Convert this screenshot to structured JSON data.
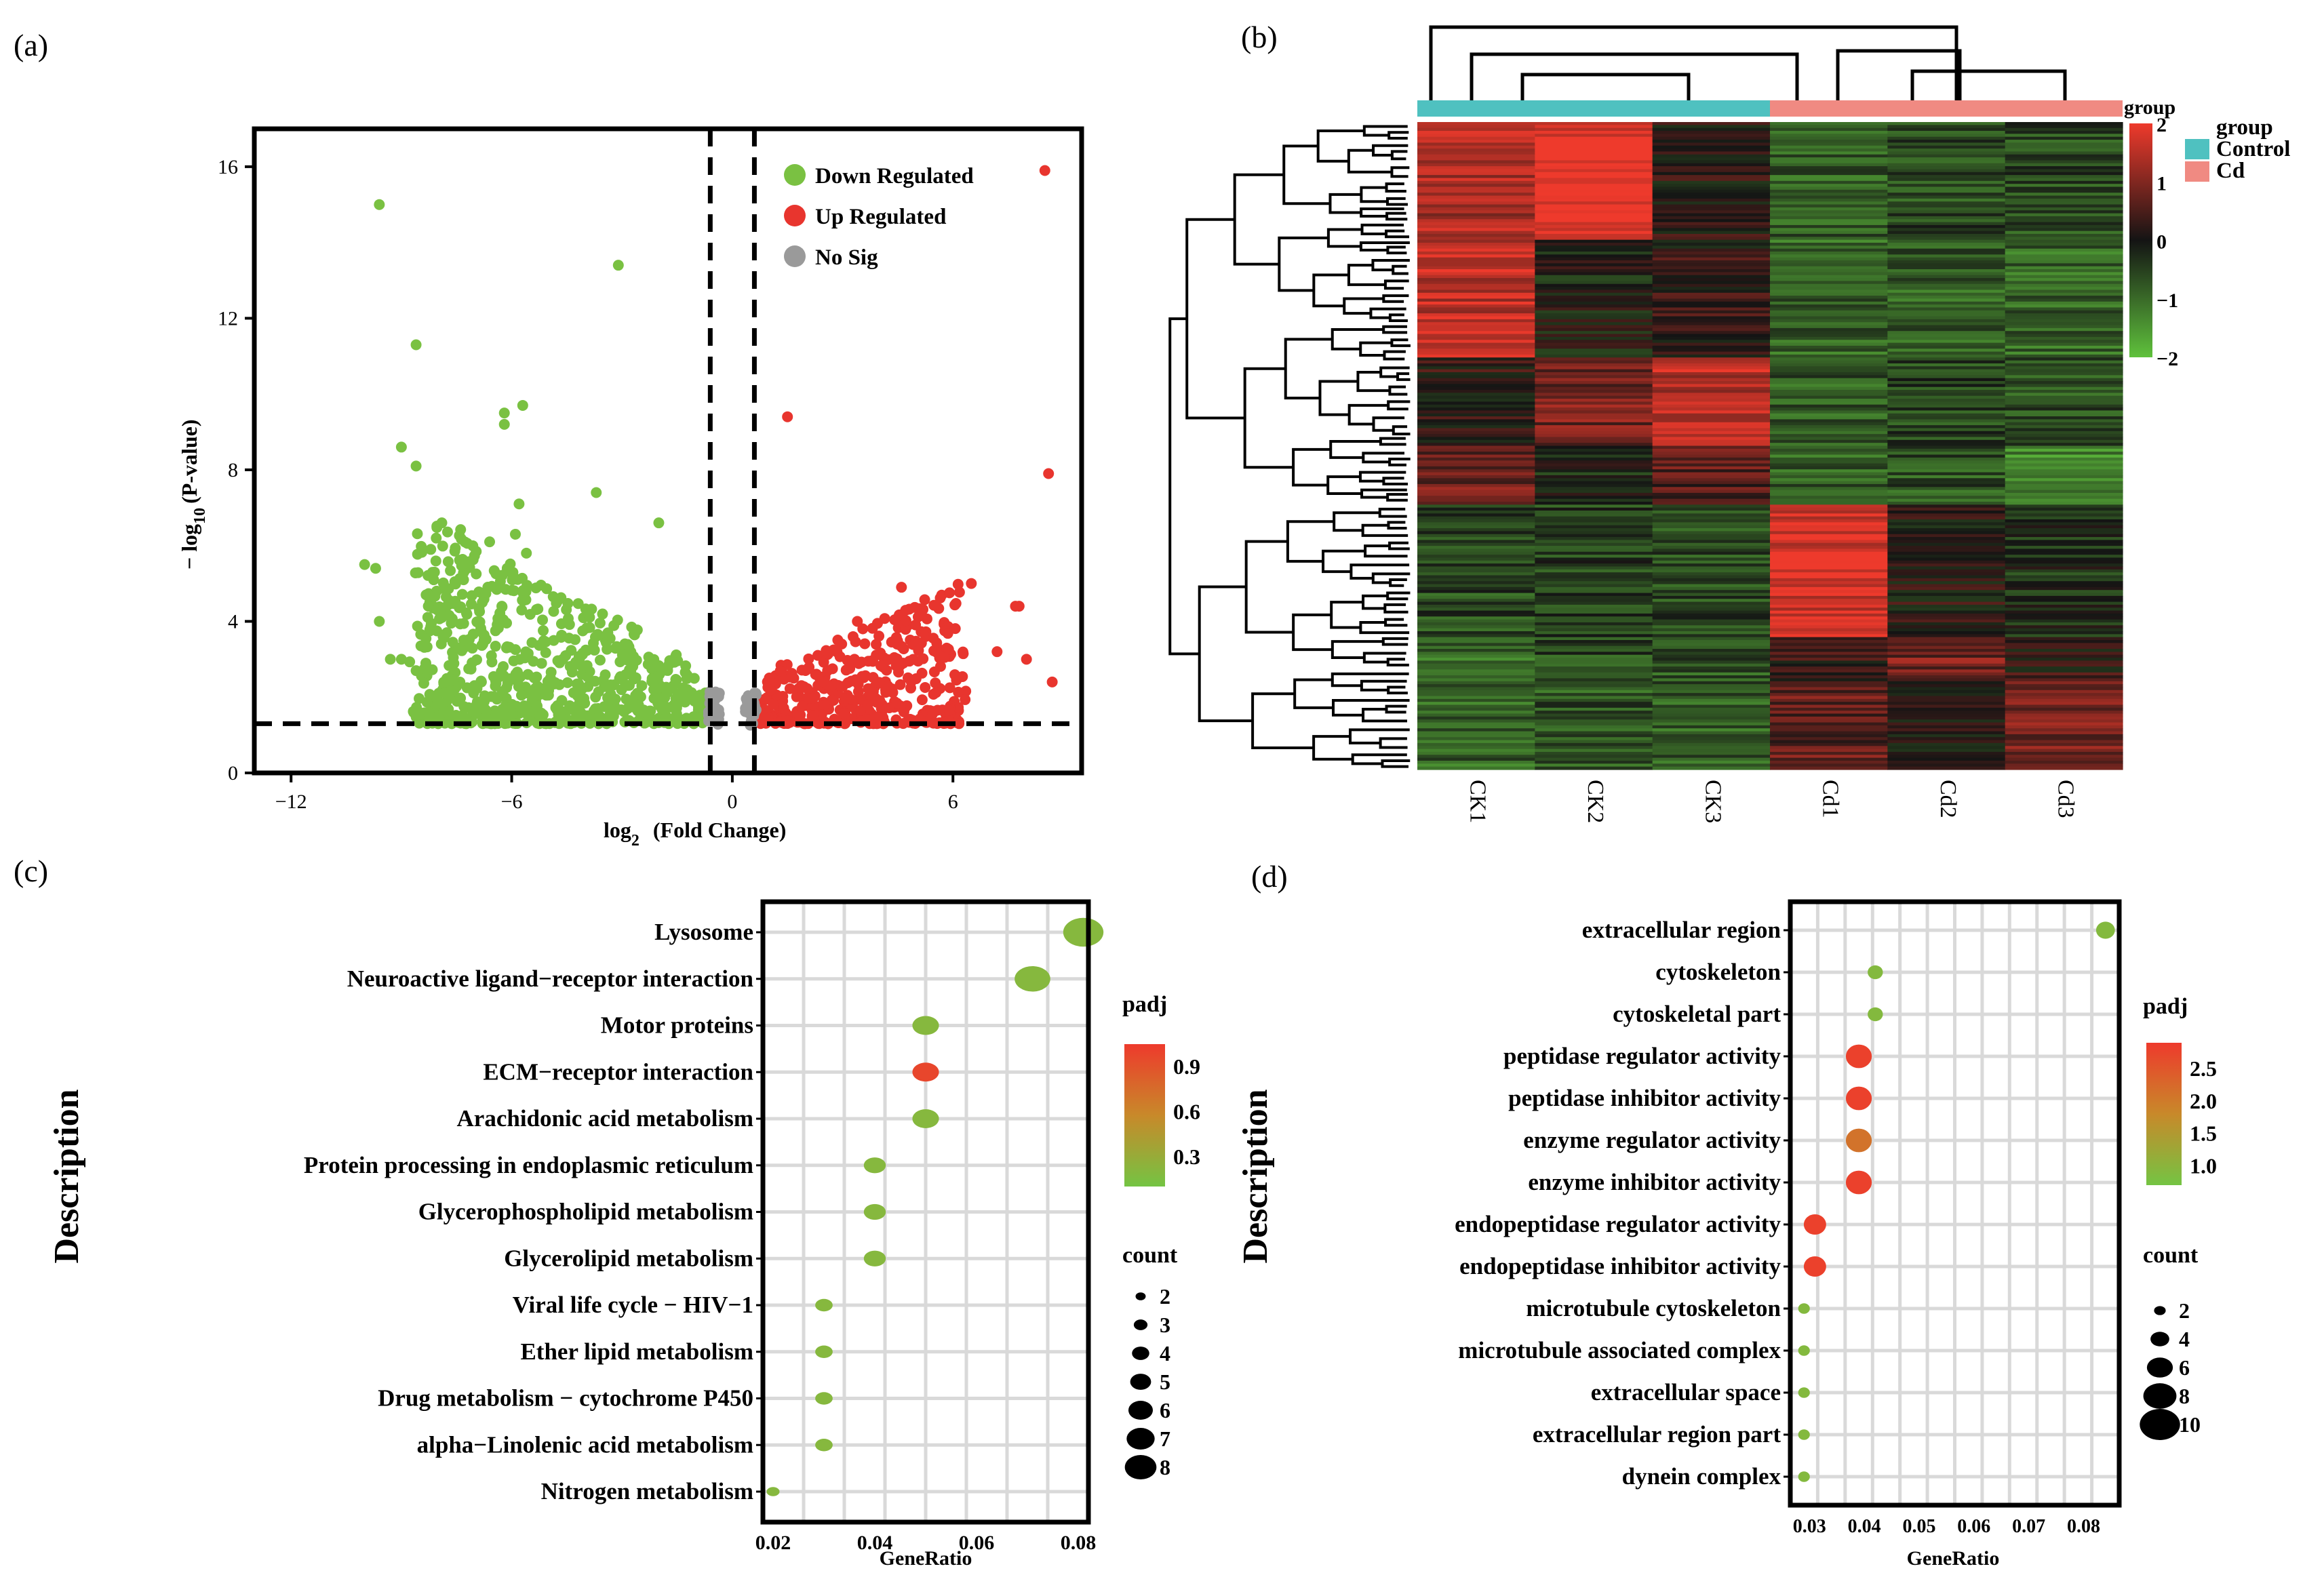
{
  "panels": {
    "a": {
      "label": "(a)"
    },
    "b": {
      "label": "(b)"
    },
    "c": {
      "label": "(c)"
    },
    "d": {
      "label": "(d)"
    }
  },
  "colors": {
    "down": "#7ac142",
    "up": "#e8352e",
    "nosig": "#9a9a9a",
    "control": "#4fc1c0",
    "cd": "#f08a82",
    "heat_high": "#ee3a2c",
    "heat_mid": "#141414",
    "heat_low": "#5fc13c",
    "padj_high": "#ee3a2c",
    "padj_mid": "#c8892a",
    "padj_low": "#74c443"
  },
  "chart_data": [
    {
      "id": "a",
      "type": "scatter",
      "title": "",
      "xlabel_main": "log",
      "xlabel_sub": "2",
      "xlabel_rest": "(Fold Change)",
      "ylabel_main": "− log",
      "ylabel_sub": "10",
      "ylabel_rest": "(P-value)",
      "xlim": [
        -13,
        9.5
      ],
      "ylim": [
        0,
        17
      ],
      "xticks": [
        -12,
        -6,
        0,
        6
      ],
      "yticks": [
        0,
        4,
        8,
        12,
        16
      ],
      "thresholds": {
        "x": [
          -0.6,
          0.6
        ],
        "y": 1.3
      },
      "legend": [
        {
          "key": "down",
          "label": "Down Regulated"
        },
        {
          "key": "up",
          "label": "Up Regulated"
        },
        {
          "key": "nosig",
          "label": "No Sig"
        }
      ],
      "notable_points": {
        "down": [
          [
            -9.6,
            15.0
          ],
          [
            -3.1,
            13.4
          ],
          [
            -8.6,
            11.3
          ],
          [
            -6.2,
            9.5
          ],
          [
            -5.7,
            9.7
          ],
          [
            -6.2,
            9.2
          ],
          [
            -9.0,
            8.6
          ],
          [
            -8.6,
            8.1
          ],
          [
            -3.7,
            7.4
          ],
          [
            -5.8,
            7.1
          ],
          [
            -7.9,
            6.6
          ],
          [
            -5.9,
            6.3
          ],
          [
            -6.6,
            6.1
          ],
          [
            -8.2,
            5.9
          ],
          [
            -2.0,
            6.6
          ],
          [
            -10.0,
            5.5
          ],
          [
            -9.7,
            5.4
          ],
          [
            -5.6,
            5.8
          ],
          [
            -9.6,
            4.0
          ],
          [
            -8.1,
            5.3
          ],
          [
            -9.3,
            3.0
          ],
          [
            -8.6,
            2.7
          ],
          [
            -9.0,
            3.0
          ],
          [
            -7.9,
            4.1
          ]
        ],
        "up": [
          [
            1.5,
            9.4
          ],
          [
            8.6,
            7.9
          ],
          [
            8.5,
            15.9
          ],
          [
            4.6,
            4.9
          ],
          [
            6.5,
            5.0
          ],
          [
            7.8,
            4.4
          ],
          [
            7.7,
            4.4
          ],
          [
            8.0,
            3.0
          ],
          [
            8.7,
            2.4
          ],
          [
            7.2,
            3.2
          ],
          [
            3.4,
            4.0
          ]
        ]
      },
      "cloud": {
        "down_count": 700,
        "up_count": 420,
        "nosig_count": 60
      }
    },
    {
      "id": "b",
      "type": "heatmap",
      "columns": [
        "CK1",
        "CK2",
        "CK3",
        "Cd1",
        "Cd2",
        "Cd3"
      ],
      "groups": [
        "Control",
        "Control",
        "Control",
        "Cd",
        "Cd",
        "Cd"
      ],
      "legend_title": "group",
      "legend_groups": [
        {
          "key": "control",
          "label": "Control"
        },
        {
          "key": "cd",
          "label": "Cd"
        }
      ],
      "color_scale": {
        "min": -2,
        "max": 2,
        "ticks": [
          "2",
          "1",
          "0",
          "−1",
          "−2"
        ]
      },
      "row_count": 220,
      "blocks": [
        {
          "rows": [
            0,
            40
          ],
          "values": [
            1.4,
            2.0,
            0.1,
            -0.8,
            -0.6,
            -0.6
          ]
        },
        {
          "rows": [
            40,
            80
          ],
          "values": [
            1.6,
            -0.1,
            0.2,
            -0.9,
            -0.8,
            -0.9
          ]
        },
        {
          "rows": [
            80,
            110
          ],
          "values": [
            0.2,
            0.9,
            1.5,
            -0.8,
            -0.5,
            -0.7
          ]
        },
        {
          "rows": [
            110,
            130
          ],
          "values": [
            0.8,
            -0.2,
            0.6,
            -0.9,
            -0.7,
            -1.3
          ]
        },
        {
          "rows": [
            130,
            175
          ],
          "values": [
            -0.6,
            -0.5,
            -0.6,
            1.8,
            0.1,
            -0.3
          ]
        },
        {
          "rows": [
            175,
            190
          ],
          "values": [
            -1.0,
            -0.6,
            -0.7,
            0.3,
            0.9,
            0.2
          ]
        },
        {
          "rows": [
            190,
            220
          ],
          "values": [
            -0.9,
            -0.7,
            -0.8,
            0.7,
            0.1,
            0.9
          ]
        }
      ]
    },
    {
      "id": "c",
      "type": "scatter",
      "xlabel": "GeneRatio",
      "ylabel": "Description",
      "xlim": [
        0.018,
        0.082
      ],
      "xticks": [
        "0.02",
        "0.04",
        "0.06",
        "0.08"
      ],
      "xtick_values": [
        0.02,
        0.04,
        0.06,
        0.08
      ],
      "categories": [
        "Lysosome",
        "Neuroactive ligand−receptor interaction",
        "Motor proteins",
        "ECM−receptor interaction",
        "Arachidonic acid metabolism",
        "Protein processing in endoplasmic reticulum",
        "Glycerophospholipid metabolism",
        "Glycerolipid metabolism",
        "Viral life cycle − HIV−1",
        "Ether lipid metabolism",
        "Drug metabolism − cytochrome P450",
        "alpha−Linolenic acid metabolism",
        "Nitrogen metabolism"
      ],
      "x": [
        0.081,
        0.071,
        0.05,
        0.05,
        0.05,
        0.04,
        0.04,
        0.04,
        0.03,
        0.03,
        0.03,
        0.03,
        0.02
      ],
      "count": [
        8,
        7,
        5,
        5,
        5,
        4,
        4,
        4,
        3,
        3,
        3,
        3,
        2
      ],
      "padj": [
        0.2,
        0.2,
        0.2,
        0.98,
        0.2,
        0.2,
        0.2,
        0.2,
        0.2,
        0.2,
        0.2,
        0.2,
        0.2
      ],
      "padj_legend": {
        "title": "padj",
        "ticks": [
          "0.9",
          "0.6",
          "0.3"
        ],
        "tick_values": [
          0.9,
          0.6,
          0.3
        ],
        "range": [
          0.1,
          1.05
        ]
      },
      "count_legend": {
        "title": "count",
        "values": [
          2,
          3,
          4,
          5,
          6,
          7,
          8
        ],
        "labels": [
          "2",
          "3",
          "4",
          "5",
          "6",
          "7",
          "8"
        ]
      }
    },
    {
      "id": "d",
      "type": "scatter",
      "xlabel": "GeneRatio",
      "ylabel": "Description",
      "xlim": [
        0.0265,
        0.0865
      ],
      "xticks": [
        "0.03",
        "0.04",
        "0.05",
        "0.06",
        "0.07",
        "0.08"
      ],
      "xtick_values": [
        0.03,
        0.04,
        0.05,
        0.06,
        0.07,
        0.08
      ],
      "categories": [
        "extracellular region",
        "cytoskeleton",
        "cytoskeletal part",
        "peptidase regulator activity",
        "peptidase inhibitor activity",
        "enzyme regulator activity",
        "enzyme inhibitor activity",
        "endopeptidase regulator activity",
        "endopeptidase inhibitor activity",
        "microtubule cytoskeleton",
        "microtubule associated complex",
        "extracellular space",
        "extracellular region part",
        "dynein complex"
      ],
      "x": [
        0.084,
        0.042,
        0.042,
        0.039,
        0.039,
        0.039,
        0.039,
        0.031,
        0.031,
        0.029,
        0.029,
        0.029,
        0.029,
        0.029
      ],
      "count": [
        4,
        3,
        3,
        6,
        6,
        6,
        6,
        5,
        5,
        2,
        2,
        2,
        2,
        2
      ],
      "padj": [
        0.9,
        0.9,
        0.9,
        2.8,
        2.8,
        2.1,
        2.8,
        2.8,
        2.8,
        0.9,
        0.9,
        0.9,
        0.9,
        0.9
      ],
      "padj_legend": {
        "title": "padj",
        "ticks": [
          "2.5",
          "2.0",
          "1.5",
          "1.0"
        ],
        "tick_values": [
          2.5,
          2.0,
          1.5,
          1.0
        ],
        "range": [
          0.7,
          2.9
        ]
      },
      "count_legend": {
        "title": "count",
        "values": [
          2,
          4,
          6,
          8,
          10
        ],
        "labels": [
          "2",
          "4",
          "6",
          "8",
          "10"
        ]
      }
    }
  ]
}
